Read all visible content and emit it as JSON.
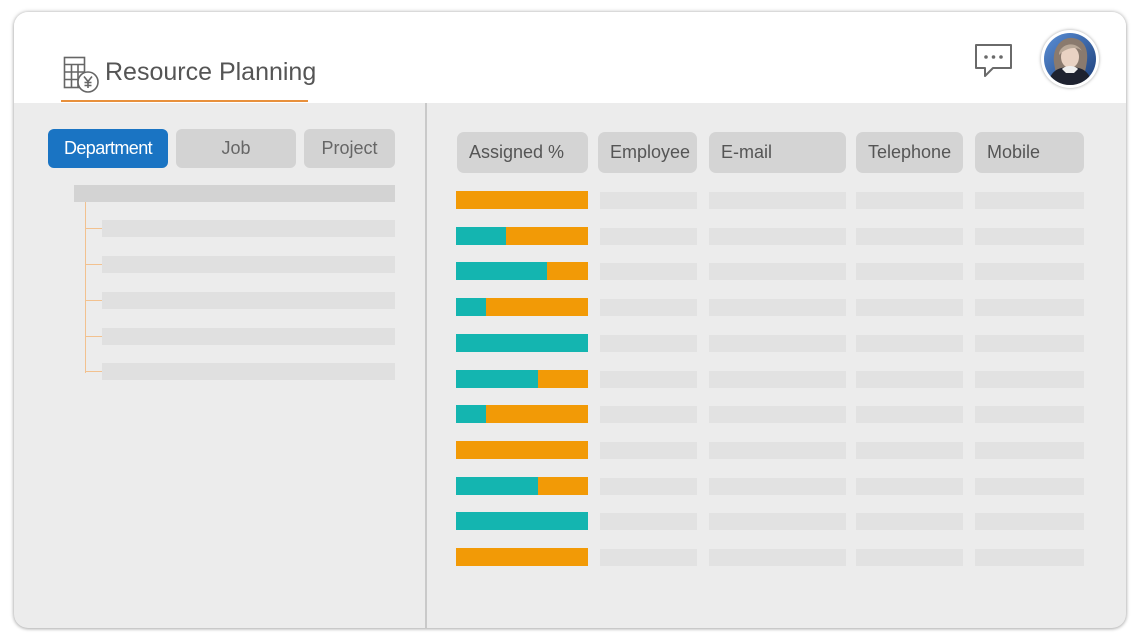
{
  "header": {
    "title": "Resource Planning",
    "icons": {
      "app": "spreadsheet-yen-icon",
      "chat": "chat-bubble-icon"
    }
  },
  "tabs": [
    {
      "label": "Department",
      "active": true
    },
    {
      "label": "Job",
      "active": false
    },
    {
      "label": "Project",
      "active": false
    }
  ],
  "table": {
    "columns": [
      "Assigned %",
      "Employee",
      "E-mail",
      "Telephone",
      "Mobile"
    ],
    "assigned_fraction": [
      0,
      0.38,
      0.69,
      0.23,
      1.0,
      0.62,
      0.23,
      0,
      0.62,
      1.0,
      0
    ]
  },
  "colors": {
    "accent": "#1a74c3",
    "assigned": "#14b5b0",
    "unassigned": "#f29a06",
    "title_underline": "#e8903c"
  }
}
